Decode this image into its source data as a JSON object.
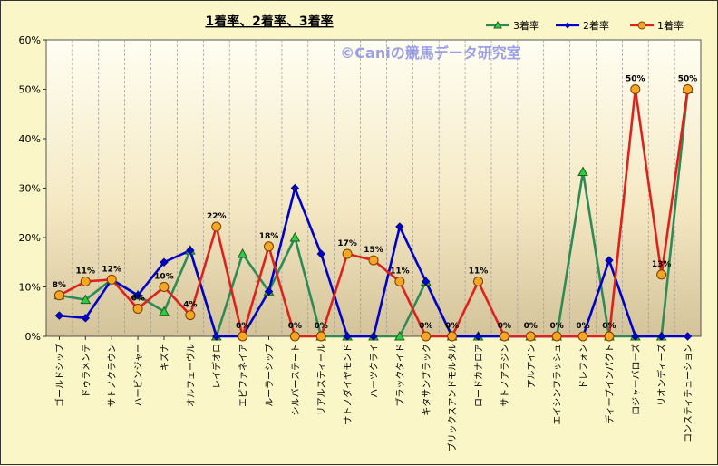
{
  "chart_data": {
    "type": "line",
    "title": "1着率、2着率、3着率",
    "watermark": "©Caniの競馬データ研究室",
    "xlabel": "",
    "ylabel": "",
    "ylim": [
      0,
      60
    ],
    "y_ticks": [
      "0%",
      "10%",
      "20%",
      "30%",
      "40%",
      "50%",
      "60%"
    ],
    "grid": "vertical dashed",
    "legend_position": "top-right",
    "categories": [
      "ゴールドシップ",
      "ドゥラメンテ",
      "サトノクラウン",
      "ハービンジャー",
      "キズナ",
      "オルフェーヴル",
      "レイデオロ",
      "エピファネイア",
      "ルーラーシップ",
      "シルバーステート",
      "リアルスティール",
      "サトノダイヤモンド",
      "ハーツクライ",
      "ブラックタイド",
      "キタサンブラック",
      "ブリックスアンドモルタル",
      "ロードカナロア",
      "サトノアラジン",
      "アルアイン",
      "エイシンフラッシュ",
      "ドレフォン",
      "ディープインパクト",
      "ロジャーバローズ",
      "リオンディーズ",
      "コンスティチューション"
    ],
    "series": [
      {
        "name": "3着率",
        "color": "#2e8b57",
        "marker": "triangle",
        "values": [
          8.3,
          7.4,
          11.5,
          8.3,
          5.0,
          17.4,
          0,
          16.7,
          9.1,
          20.0,
          0,
          0,
          0,
          0,
          11.1,
          0,
          0,
          0,
          0,
          0,
          33.3,
          0,
          0,
          0,
          50.0
        ]
      },
      {
        "name": "2着率",
        "color": "#0000cd",
        "marker": "diamond",
        "values": [
          4.2,
          3.7,
          11.5,
          8.3,
          15.0,
          17.4,
          0,
          0,
          9.1,
          30.0,
          16.7,
          0,
          0,
          22.2,
          11.1,
          0,
          0,
          0,
          0,
          0,
          0,
          15.4,
          0,
          0,
          0
        ]
      },
      {
        "name": "1着率",
        "color": "#e0201b",
        "marker": "circle",
        "values": [
          8.3,
          11.1,
          11.5,
          5.6,
          10.0,
          4.3,
          22.2,
          0,
          18.2,
          0,
          0,
          16.7,
          15.4,
          11.1,
          0,
          0,
          11.1,
          0,
          0,
          0,
          0,
          0,
          50.0,
          12.5,
          50.0
        ]
      }
    ],
    "data_labels": [
      "8%",
      "11%",
      "12%",
      "6%",
      "10%",
      "4%",
      "22%",
      "0%",
      "18%",
      "0%",
      "0%",
      "17%",
      "15%",
      "11%",
      "0%",
      "0%",
      "11%",
      "0%",
      "0%",
      "0%",
      "0%",
      "0%",
      "50%",
      "13%",
      "50%"
    ]
  }
}
